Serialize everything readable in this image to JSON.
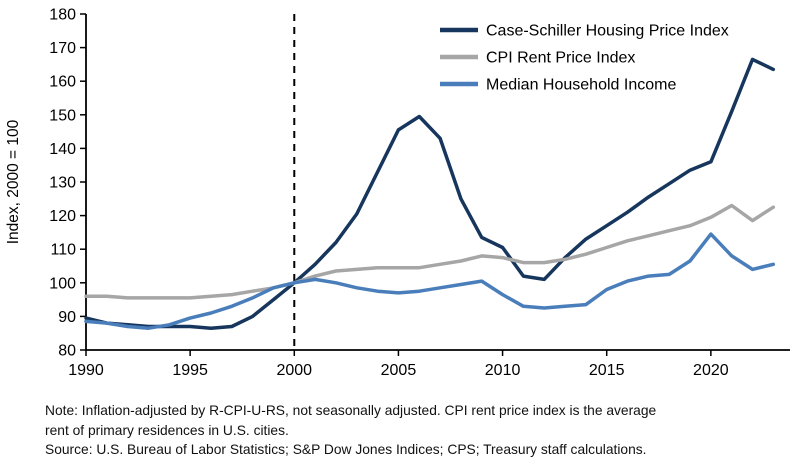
{
  "chart_data": {
    "type": "line",
    "title": "",
    "ylabel": "Index, 2000 = 100",
    "ylim": [
      80,
      180
    ],
    "ytick_step": 10,
    "xlim": [
      1990,
      2023.8
    ],
    "xticks": [
      1990,
      1995,
      2000,
      2005,
      2010,
      2015,
      2020
    ],
    "dashed_vline_x": 2000,
    "grid": false,
    "legend_position": "top-right-inside",
    "x": [
      1990,
      1991,
      1992,
      1993,
      1994,
      1995,
      1996,
      1997,
      1998,
      1999,
      2000,
      2001,
      2002,
      2003,
      2004,
      2005,
      2006,
      2007,
      2008,
      2009,
      2010,
      2011,
      2012,
      2013,
      2014,
      2015,
      2016,
      2017,
      2018,
      2019,
      2020,
      2021,
      2022,
      2023
    ],
    "series": [
      {
        "name": "Case-Schiller Housing Price Index",
        "color": "#17365d",
        "width": 3.5,
        "values": [
          89.5,
          88,
          87.5,
          87,
          87,
          87,
          86.5,
          87,
          90,
          95,
          100,
          105.5,
          112,
          120.5,
          133,
          145.5,
          149.5,
          143,
          125,
          113.5,
          110.5,
          102,
          101,
          107.5,
          113,
          117,
          121,
          125.5,
          129.5,
          133.5,
          136,
          151,
          166.5,
          163.5
        ]
      },
      {
        "name": "CPI Rent Price Index",
        "color": "#a6a6a6",
        "width": 3.5,
        "values": [
          96,
          96,
          95.5,
          95.5,
          95.5,
          95.5,
          96,
          96.5,
          97.5,
          98.5,
          100,
          102,
          103.5,
          104,
          104.5,
          104.5,
          104.5,
          105.5,
          106.5,
          108,
          107.5,
          106,
          106,
          107,
          108.5,
          110.5,
          112.5,
          114,
          115.5,
          117,
          119.5,
          123,
          118.5,
          122.5
        ]
      },
      {
        "name": "Median Household Income",
        "color": "#4a7ebb",
        "width": 3.5,
        "values": [
          88.5,
          88,
          87,
          86.5,
          87.5,
          89.5,
          91,
          93,
          95.5,
          98.5,
          100,
          101,
          100,
          98.5,
          97.5,
          97,
          97.5,
          98.5,
          99.5,
          100.5,
          96.5,
          93,
          92.5,
          93,
          93.5,
          98,
          100.5,
          102,
          102.5,
          106.5,
          114.5,
          108,
          104,
          105.5
        ]
      }
    ],
    "axis_color": "#000000",
    "dashed_line_color": "#000000"
  },
  "notes": {
    "lines": [
      "Note: Inflation-adjusted by R-CPI-U-RS, not seasonally adjusted. CPI rent price index is the average",
      "rent of primary residences in U.S. cities.",
      "Source: U.S. Bureau of Labor Statistics; S&P Dow Jones Indices; CPS; Treasury staff calculations."
    ]
  }
}
